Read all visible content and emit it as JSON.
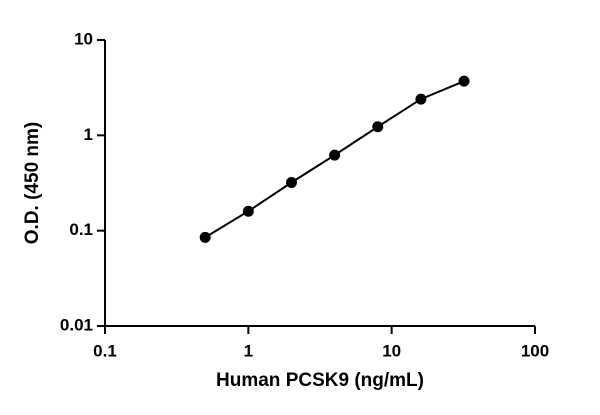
{
  "chart_data": {
    "type": "line",
    "x_label": "Human PCSK9 (ng/mL)",
    "y_label": "O.D. (450 nm)",
    "x": [
      0.5,
      1,
      2,
      4,
      8,
      16,
      32
    ],
    "series": [
      {
        "values": [
          0.085,
          0.16,
          0.32,
          0.62,
          1.23,
          2.4,
          3.7
        ],
        "color": "#000000"
      }
    ],
    "xlim": [
      0.1,
      100
    ],
    "xticks": [
      0.1,
      1,
      10,
      100
    ],
    "ylim": [
      0.01,
      10
    ],
    "yticks": [
      0.01,
      0.1,
      1,
      10
    ],
    "xscale": "log",
    "yscale": "log",
    "grid": false,
    "markers": true
  }
}
